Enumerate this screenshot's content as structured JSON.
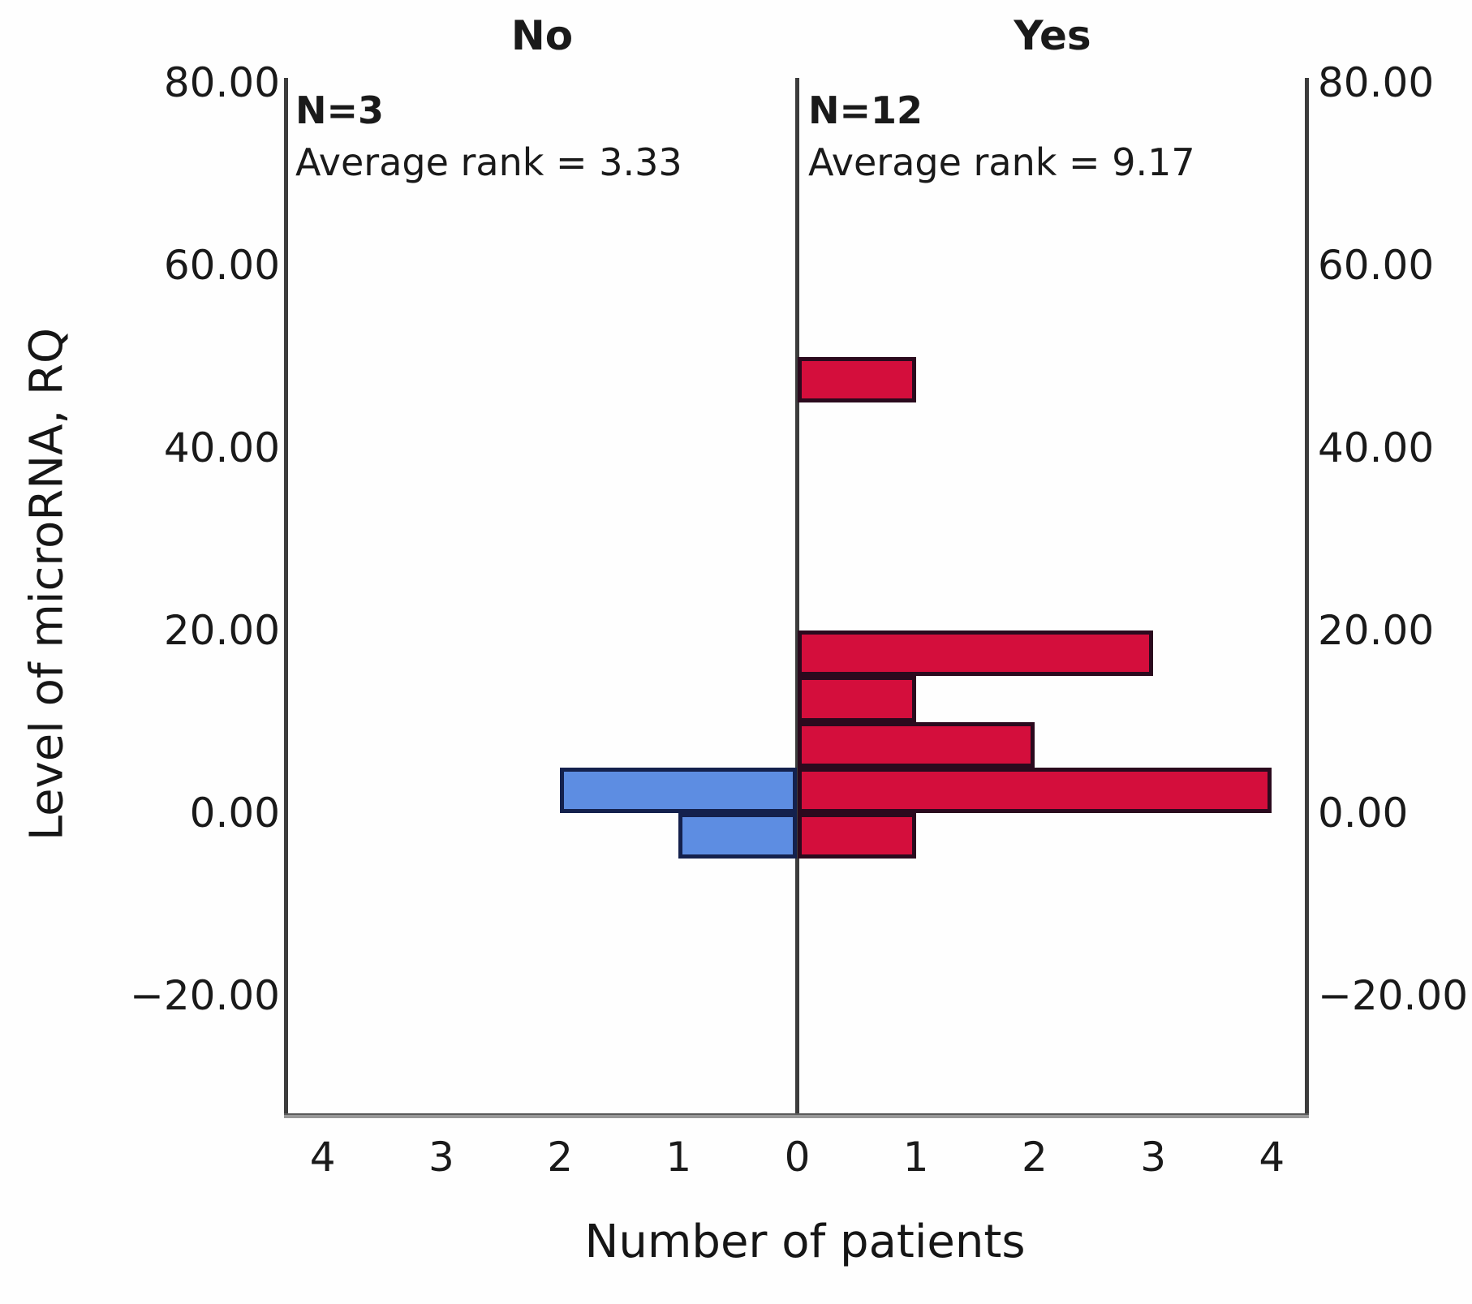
{
  "chart_data": {
    "type": "bar",
    "variant": "back-to-back-histogram-population-pyramid",
    "title_left": "No",
    "title_right": "Yes",
    "xlabel": "Number of patients",
    "ylabel": "Level of microRNA, RQ",
    "grid": false,
    "legend_position": "none",
    "bin_size": 5,
    "ylim": [
      -32,
      81
    ],
    "xlim_counts": [
      -4.3,
      4.3
    ],
    "y_ticks": [
      {
        "value": 80,
        "label": "80.00"
      },
      {
        "value": 60,
        "label": "60.00"
      },
      {
        "value": 40,
        "label": "40.00"
      },
      {
        "value": 20,
        "label": "20.00"
      },
      {
        "value": 0,
        "label": "0.00"
      },
      {
        "value": -20,
        "label": "−20.00"
      }
    ],
    "x_ticks": [
      {
        "value": -4,
        "label": "4"
      },
      {
        "value": -3,
        "label": "3"
      },
      {
        "value": -2,
        "label": "2"
      },
      {
        "value": -1,
        "label": "1"
      },
      {
        "value": 0,
        "label": "0"
      },
      {
        "value": 1,
        "label": "1"
      },
      {
        "value": 2,
        "label": "2"
      },
      {
        "value": 3,
        "label": "3"
      },
      {
        "value": 4,
        "label": "4"
      }
    ],
    "series": [
      {
        "name": "No",
        "direction": "left",
        "color": "#5d8de2",
        "border_color": "#14214d",
        "annotation": {
          "n": "N=3",
          "rank": "Average rank = 3.33"
        },
        "bins": [
          {
            "from": 0,
            "to": 5,
            "count": 2
          },
          {
            "from": -5,
            "to": 0,
            "count": 1
          }
        ]
      },
      {
        "name": "Yes",
        "direction": "right",
        "color": "#d40e3c",
        "border_color": "#2b0a1e",
        "annotation": {
          "n": "N=12",
          "rank": "Average rank = 9.17"
        },
        "bins": [
          {
            "from": 45,
            "to": 50,
            "count": 1
          },
          {
            "from": 15,
            "to": 20,
            "count": 3
          },
          {
            "from": 10,
            "to": 15,
            "count": 1
          },
          {
            "from": 5,
            "to": 10,
            "count": 2
          },
          {
            "from": 0,
            "to": 5,
            "count": 4
          },
          {
            "from": -5,
            "to": 0,
            "count": 1
          }
        ]
      }
    ],
    "colors": {
      "axis": "#3c3c3c",
      "baseline": "#989898",
      "text": "#1a1a1a",
      "background": "#fefefe"
    }
  }
}
